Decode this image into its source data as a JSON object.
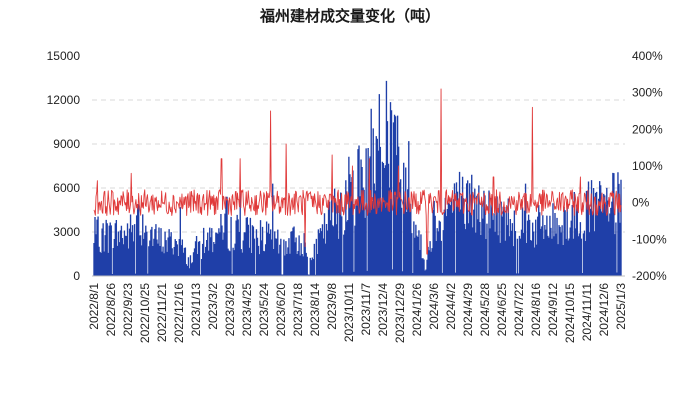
{
  "chart_data": {
    "type": "bar+line",
    "title": "福州建材成交量变化（吨）",
    "y_left": {
      "ticks": [
        "0",
        "3000",
        "6000",
        "9000",
        "12000",
        "15000"
      ],
      "ylim": [
        0,
        15000
      ],
      "gridlines_at": [
        3000,
        6000,
        9000,
        12000
      ]
    },
    "y_right": {
      "ticks": [
        "-200%",
        "-100%",
        "0%",
        "100%",
        "200%",
        "300%",
        "400%"
      ],
      "ylim": [
        -200,
        400
      ]
    },
    "x_ticks": [
      "2022/8/1",
      "2022/8/26",
      "2022/9/23",
      "2022/10/25",
      "2022/11/21",
      "2022/12/16",
      "2023/1/13",
      "2023/3/2",
      "2023/3/29",
      "2023/4/25",
      "2023/5/24",
      "2023/6/20",
      "2023/7/18",
      "2023/8/14",
      "2023/9/8",
      "2023/10/11",
      "2023/11/7",
      "2023/12/4",
      "2023/12/29",
      "2024/1/26",
      "2024/3/6",
      "2024/4/2",
      "2024/4/29",
      "2024/5/28",
      "2024/6/25",
      "2024/7/22",
      "2024/8/16",
      "2024/9/12",
      "2024/10/15",
      "2024/11/11",
      "2024/12/6",
      "2025/1/3"
    ],
    "series": [
      {
        "kind": "bar",
        "axis": "left",
        "color": "#1f3fa8",
        "anchors": [
          [
            0,
            2700
          ],
          [
            2,
            2800
          ],
          [
            3,
            3600
          ],
          [
            3.5,
            2500
          ],
          [
            4,
            2300
          ],
          [
            5,
            2200
          ],
          [
            5.6,
            900
          ],
          [
            6,
            1800
          ],
          [
            7,
            2700
          ],
          [
            8,
            3000
          ],
          [
            9,
            2800
          ],
          [
            10,
            2600
          ],
          [
            11,
            2000
          ],
          [
            12,
            2400
          ],
          [
            13,
            1700
          ],
          [
            14,
            4000
          ],
          [
            15,
            5500
          ],
          [
            16,
            6800
          ],
          [
            17,
            8400
          ],
          [
            17.5,
            9400
          ],
          [
            18,
            7000
          ],
          [
            19,
            3200
          ],
          [
            19.5,
            500
          ],
          [
            20,
            3900
          ],
          [
            21,
            4600
          ],
          [
            22,
            4800
          ],
          [
            23,
            4200
          ],
          [
            24,
            3900
          ],
          [
            25,
            3600
          ],
          [
            26,
            3200
          ],
          [
            27,
            3400
          ],
          [
            28,
            3800
          ],
          [
            29,
            4300
          ],
          [
            30,
            4600
          ],
          [
            31,
            4800
          ]
        ],
        "peaks": [
          [
            17.2,
            13300
          ],
          [
            16.8,
            12400
          ],
          [
            16.3,
            11400
          ],
          [
            5.1,
            4700
          ],
          [
            2.6,
            4900
          ],
          [
            7.8,
            5400
          ],
          [
            8.6,
            5800
          ],
          [
            10.5,
            6300
          ],
          [
            15.6,
            8900
          ],
          [
            18.5,
            9200
          ],
          [
            21.5,
            7100
          ],
          [
            22.2,
            6900
          ],
          [
            25.4,
            6300
          ],
          [
            29.0,
            5800
          ]
        ]
      },
      {
        "kind": "line",
        "axis": "right",
        "color": "#e03a3a",
        "base": 0,
        "spikes": [
          [
            10.4,
            250
          ],
          [
            11.3,
            160
          ],
          [
            14.0,
            130
          ],
          [
            15.2,
            100
          ],
          [
            20.4,
            310
          ],
          [
            25.8,
            260
          ],
          [
            7.5,
            120
          ],
          [
            8.6,
            120
          ],
          [
            16.2,
            120
          ],
          [
            17.9,
            100
          ],
          [
            23.5,
            70
          ],
          [
            28.6,
            70
          ],
          [
            2.2,
            80
          ],
          [
            0.2,
            60
          ],
          [
            19.6,
            -140
          ],
          [
            12.4,
            -120
          ]
        ]
      }
    ]
  }
}
